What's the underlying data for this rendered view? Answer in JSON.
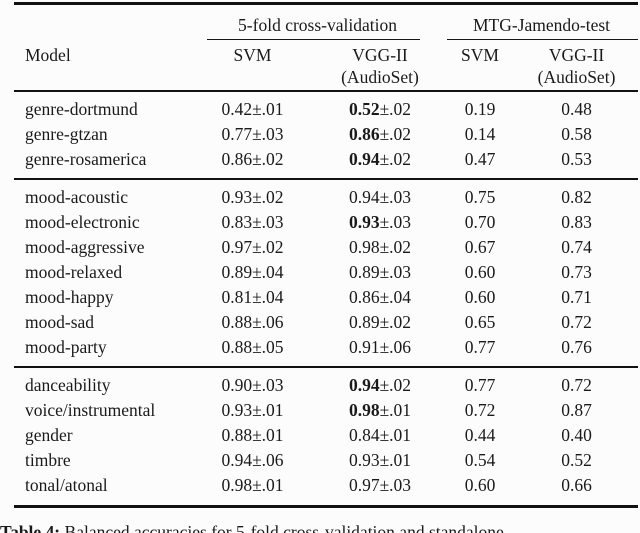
{
  "colors": {
    "text": "#1a1a1a",
    "rule": "#121212",
    "background": "#fcfcfc"
  },
  "table": {
    "group_headers": [
      {
        "label": "5-fold cross-validation"
      },
      {
        "label": "MTG-Jamendo-test"
      }
    ],
    "columns": {
      "model": "Model",
      "cv_svm": "SVM",
      "cv_vgg_line1": "VGG-II",
      "cv_vgg_line2": "(AudioSet)",
      "test_svm": "SVM",
      "test_vgg_line1": "VGG-II",
      "test_vgg_line2": "(AudioSet)"
    },
    "groups": [
      {
        "rows": [
          {
            "model": "genre-dortmund",
            "cv_svm": {
              "mean": "0.42",
              "err": "±.01",
              "bold": false
            },
            "cv_vgg": {
              "mean": "0.52",
              "err": "±.02",
              "bold": true
            },
            "test_svm": "0.19",
            "test_vgg": "0.48"
          },
          {
            "model": "genre-gtzan",
            "cv_svm": {
              "mean": "0.77",
              "err": "±.03",
              "bold": false
            },
            "cv_vgg": {
              "mean": "0.86",
              "err": "±.02",
              "bold": true
            },
            "test_svm": "0.14",
            "test_vgg": "0.58"
          },
          {
            "model": "genre-rosamerica",
            "cv_svm": {
              "mean": "0.86",
              "err": "±.02",
              "bold": false
            },
            "cv_vgg": {
              "mean": "0.94",
              "err": "±.02",
              "bold": true
            },
            "test_svm": "0.47",
            "test_vgg": "0.53"
          }
        ]
      },
      {
        "rows": [
          {
            "model": "mood-acoustic",
            "cv_svm": {
              "mean": "0.93",
              "err": "±.02",
              "bold": false
            },
            "cv_vgg": {
              "mean": "0.94",
              "err": "±.03",
              "bold": false
            },
            "test_svm": "0.75",
            "test_vgg": "0.82"
          },
          {
            "model": "mood-electronic",
            "cv_svm": {
              "mean": "0.83",
              "err": "±.03",
              "bold": false
            },
            "cv_vgg": {
              "mean": "0.93",
              "err": "±.03",
              "bold": true
            },
            "test_svm": "0.70",
            "test_vgg": "0.83"
          },
          {
            "model": "mood-aggressive",
            "cv_svm": {
              "mean": "0.97",
              "err": "±.02",
              "bold": false
            },
            "cv_vgg": {
              "mean": "0.98",
              "err": "±.02",
              "bold": false
            },
            "test_svm": "0.67",
            "test_vgg": "0.74"
          },
          {
            "model": "mood-relaxed",
            "cv_svm": {
              "mean": "0.89",
              "err": "±.04",
              "bold": false
            },
            "cv_vgg": {
              "mean": "0.89",
              "err": "±.03",
              "bold": false
            },
            "test_svm": "0.60",
            "test_vgg": "0.73"
          },
          {
            "model": "mood-happy",
            "cv_svm": {
              "mean": "0.81",
              "err": "±.04",
              "bold": false
            },
            "cv_vgg": {
              "mean": "0.86",
              "err": "±.04",
              "bold": false
            },
            "test_svm": "0.60",
            "test_vgg": "0.71"
          },
          {
            "model": "mood-sad",
            "cv_svm": {
              "mean": "0.88",
              "err": "±.06",
              "bold": false
            },
            "cv_vgg": {
              "mean": "0.89",
              "err": "±.02",
              "bold": false
            },
            "test_svm": "0.65",
            "test_vgg": "0.72"
          },
          {
            "model": "mood-party",
            "cv_svm": {
              "mean": "0.88",
              "err": "±.05",
              "bold": false
            },
            "cv_vgg": {
              "mean": "0.91",
              "err": "±.06",
              "bold": false
            },
            "test_svm": "0.77",
            "test_vgg": "0.76"
          }
        ]
      },
      {
        "rows": [
          {
            "model": "danceability",
            "cv_svm": {
              "mean": "0.90",
              "err": "±.03",
              "bold": false
            },
            "cv_vgg": {
              "mean": "0.94",
              "err": "±.02",
              "bold": true
            },
            "test_svm": "0.77",
            "test_vgg": "0.72"
          },
          {
            "model": "voice/instrumental",
            "cv_svm": {
              "mean": "0.93",
              "err": "±.01",
              "bold": false
            },
            "cv_vgg": {
              "mean": "0.98",
              "err": "±.01",
              "bold": true
            },
            "test_svm": "0.72",
            "test_vgg": "0.87"
          },
          {
            "model": "gender",
            "cv_svm": {
              "mean": "0.88",
              "err": "±.01",
              "bold": false
            },
            "cv_vgg": {
              "mean": "0.84",
              "err": "±.01",
              "bold": false
            },
            "test_svm": "0.44",
            "test_vgg": "0.40"
          },
          {
            "model": "timbre",
            "cv_svm": {
              "mean": "0.94",
              "err": "±.06",
              "bold": false
            },
            "cv_vgg": {
              "mean": "0.93",
              "err": "±.01",
              "bold": false
            },
            "test_svm": "0.54",
            "test_vgg": "0.52"
          },
          {
            "model": "tonal/atonal",
            "cv_svm": {
              "mean": "0.98",
              "err": "±.01",
              "bold": false
            },
            "cv_vgg": {
              "mean": "0.97",
              "err": "±.03",
              "bold": false
            },
            "test_svm": "0.60",
            "test_vgg": "0.66"
          }
        ]
      }
    ]
  },
  "caption": {
    "label": "Table 4:",
    "text": "Balanced accuracies for 5-fold cross-validation and standalone"
  }
}
